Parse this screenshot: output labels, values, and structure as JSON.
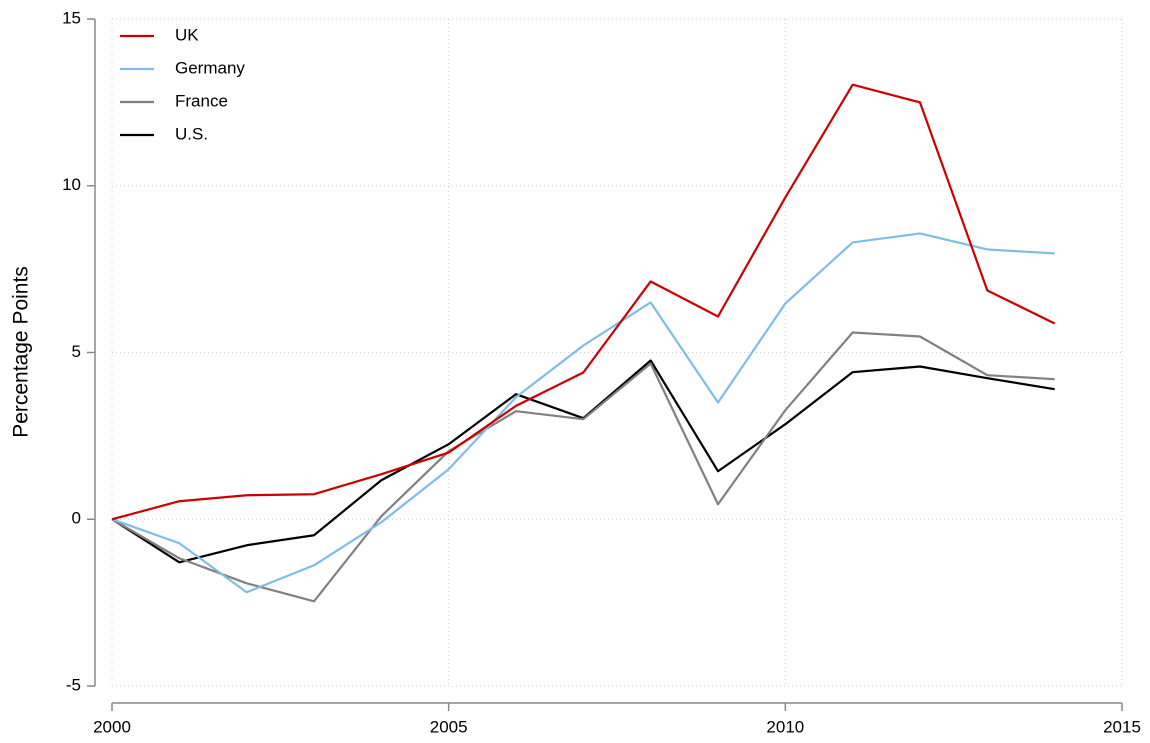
{
  "chart_data": {
    "type": "line",
    "y_label": "Percentage Points",
    "x": [
      2000,
      2001,
      2002,
      2003,
      2004,
      2005,
      2006,
      2007,
      2008,
      2009,
      2010,
      2011,
      2012,
      2013,
      2014
    ],
    "series": [
      {
        "name": "UK",
        "color": "#cc0000",
        "values": [
          0,
          0.54,
          0.72,
          0.75,
          1.35,
          2.0,
          3.4,
          4.4,
          7.13,
          6.08,
          9.65,
          13.03,
          12.5,
          6.86,
          5.87
        ]
      },
      {
        "name": "Germany",
        "color": "#7ebde6",
        "values": [
          0,
          -0.72,
          -2.19,
          -1.38,
          -0.09,
          1.5,
          3.66,
          5.21,
          6.5,
          3.5,
          6.47,
          8.3,
          8.57,
          8.09,
          7.97
        ]
      },
      {
        "name": "France",
        "color": "#808080",
        "values": [
          0,
          -1.17,
          -1.92,
          -2.46,
          0.09,
          2.04,
          3.24,
          3.0,
          4.67,
          0.45,
          3.27,
          5.6,
          5.48,
          4.32,
          4.2
        ]
      },
      {
        "name": "U.S.",
        "color": "#000000",
        "values": [
          0,
          -1.29,
          -0.78,
          -0.48,
          1.17,
          2.25,
          3.75,
          3.03,
          4.76,
          1.44,
          2.85,
          4.41,
          4.58,
          4.23,
          3.9
        ]
      }
    ],
    "xlim": [
      2000,
      2015
    ],
    "xticks": [
      2000,
      2005,
      2010,
      2015
    ],
    "ylim": [
      -5,
      15
    ],
    "yticks": [
      -5,
      0,
      5,
      10,
      15
    ],
    "grid": true,
    "legend": "top-left"
  }
}
